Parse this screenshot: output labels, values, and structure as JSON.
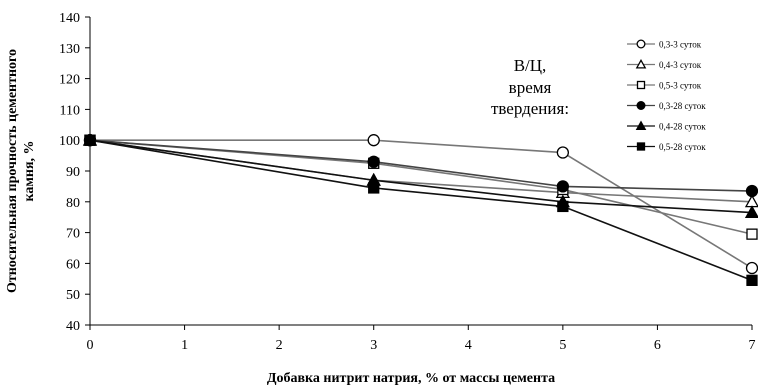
{
  "chart_data": {
    "type": "line",
    "title": "",
    "xlabel": "Добавка нитрит натрия, % от массы цемента",
    "ylabel_lines": [
      "Относительная прочность цементного",
      "камня, %"
    ],
    "xlim": [
      0,
      7
    ],
    "ylim": [
      40,
      140
    ],
    "xticks": [
      0,
      1,
      2,
      3,
      4,
      5,
      6,
      7
    ],
    "yticks": [
      40,
      50,
      60,
      70,
      80,
      90,
      100,
      110,
      120,
      130,
      140
    ],
    "grid": false,
    "legend_position": "top-right",
    "annotation_lines": [
      "В/Ц,",
      "время",
      "твердения:"
    ],
    "series": [
      {
        "name": "0,3-3 суток",
        "marker": "circle",
        "fill": "open",
        "color": "#777777",
        "points": [
          [
            0,
            100
          ],
          [
            3,
            100
          ],
          [
            5,
            96
          ],
          [
            7,
            58.5
          ]
        ]
      },
      {
        "name": "0,4-3 суток",
        "marker": "triangle",
        "fill": "open",
        "color": "#777777",
        "points": [
          [
            0,
            100
          ],
          [
            3,
            87
          ],
          [
            5,
            83
          ],
          [
            7,
            80
          ]
        ]
      },
      {
        "name": "0,5-3 суток",
        "marker": "square",
        "fill": "open",
        "color": "#777777",
        "points": [
          [
            0,
            100
          ],
          [
            3,
            92.5
          ],
          [
            5,
            84
          ],
          [
            7,
            69.5
          ]
        ]
      },
      {
        "name": "0,3-28 суток",
        "marker": "circle",
        "fill": "filled",
        "color": "#444444",
        "points": [
          [
            0,
            100
          ],
          [
            3,
            93
          ],
          [
            5,
            85
          ],
          [
            7,
            83.5
          ]
        ]
      },
      {
        "name": "0,4-28 суток",
        "marker": "triangle",
        "fill": "filled",
        "color": "#111111",
        "points": [
          [
            0,
            100
          ],
          [
            3,
            87
          ],
          [
            5,
            80
          ],
          [
            7,
            76.5
          ]
        ]
      },
      {
        "name": "0,5-28 суток",
        "marker": "square",
        "fill": "filled",
        "color": "#111111",
        "points": [
          [
            0,
            100
          ],
          [
            3,
            84.5
          ],
          [
            5,
            78.5
          ],
          [
            7,
            54.5
          ]
        ]
      }
    ]
  }
}
